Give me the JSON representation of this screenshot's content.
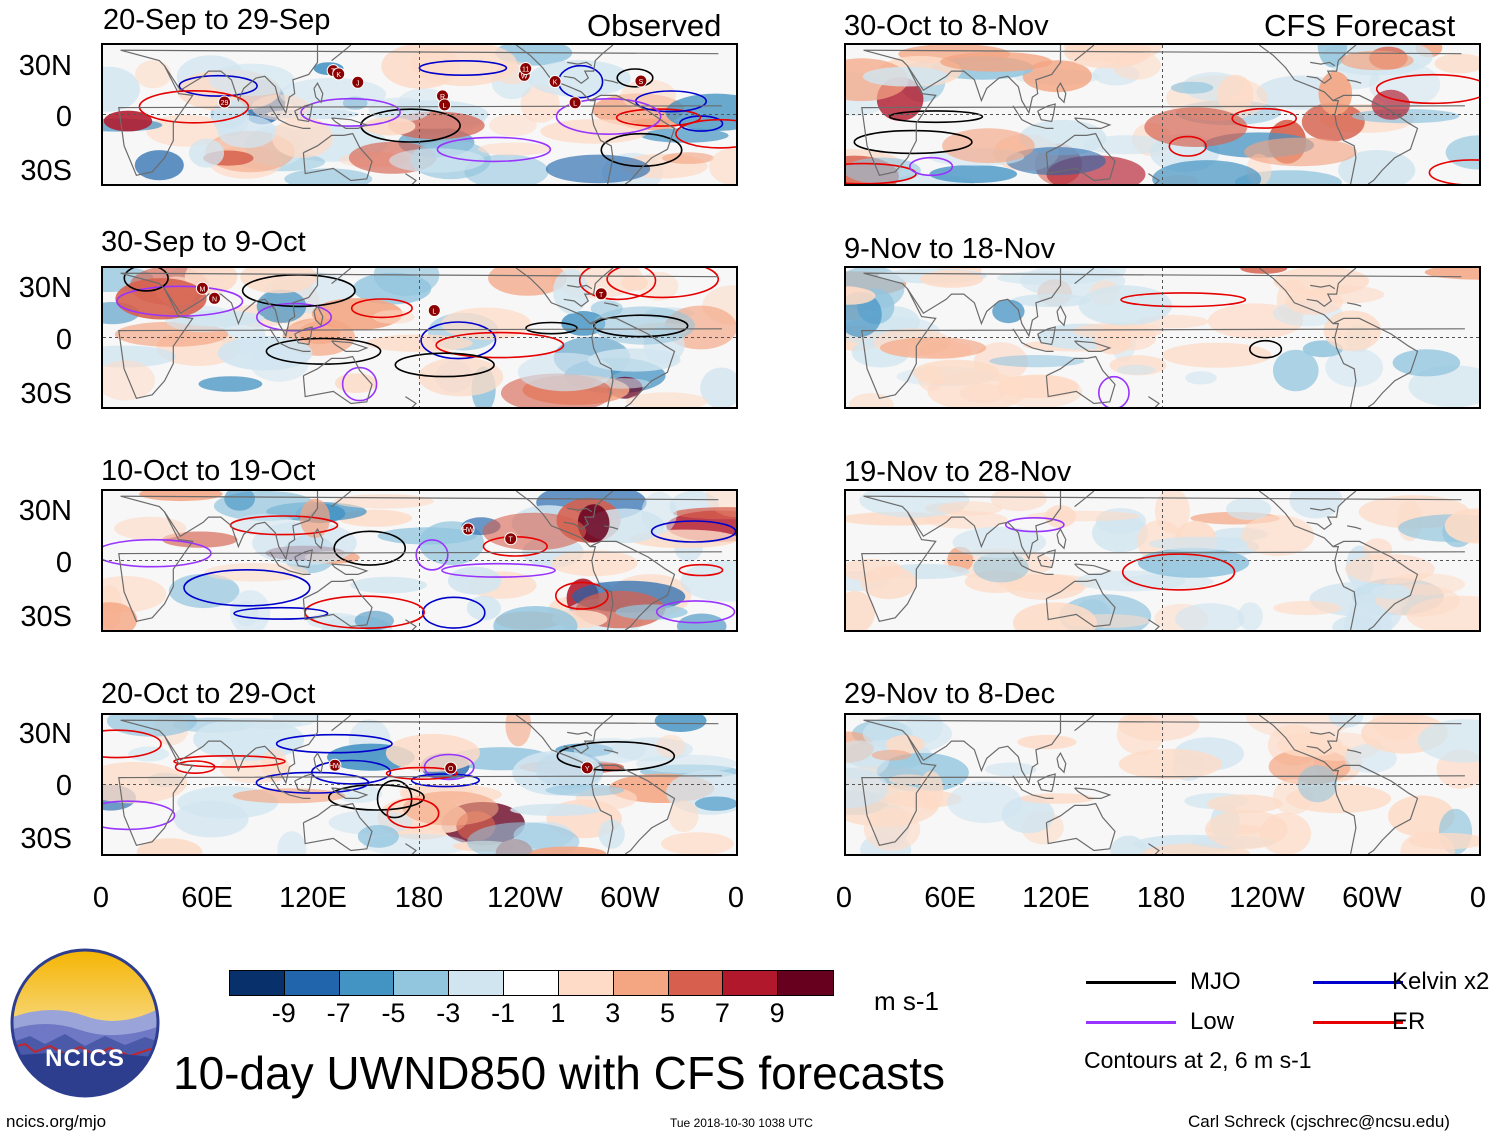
{
  "headers": {
    "observed": "Observed",
    "forecast": "CFS Forecast"
  },
  "panels_left": [
    {
      "title": "20-Sep to 29-Sep"
    },
    {
      "title": "30-Sep to 9-Oct"
    },
    {
      "title": "10-Oct to 19-Oct"
    },
    {
      "title": "20-Oct to 29-Oct"
    }
  ],
  "panels_right": [
    {
      "title": "30-Oct to 8-Nov"
    },
    {
      "title": "9-Nov to 18-Nov"
    },
    {
      "title": "19-Nov to 28-Nov"
    },
    {
      "title": "29-Nov to 8-Dec"
    }
  ],
  "lat_labels": [
    "30N",
    "0",
    "30S"
  ],
  "lon_labels": [
    "0",
    "60E",
    "120E",
    "180",
    "120W",
    "60W",
    "0"
  ],
  "colorbar": {
    "colors": [
      "#08306b",
      "#2166ac",
      "#4393c3",
      "#92c5de",
      "#d1e5f0",
      "#ffffff",
      "#fddbc7",
      "#f4a582",
      "#d6604d",
      "#b2182b",
      "#67001f"
    ],
    "ticks": [
      "-9",
      "-7",
      "-5",
      "-3",
      "-1",
      "1",
      "3",
      "5",
      "7",
      "9"
    ],
    "units": "m s-1"
  },
  "legend": {
    "items": [
      {
        "label": "MJO",
        "color": "#000000"
      },
      {
        "label": "Kelvin x2",
        "color": "#0000cc"
      },
      {
        "label": "Low",
        "color": "#9933ff"
      },
      {
        "label": "ER",
        "color": "#e60000"
      }
    ],
    "note": "Contours at 2, 6 m s-1"
  },
  "logo": {
    "text": "NCICS"
  },
  "main_title": "10-day UWND850 with CFS forecasts",
  "footer": {
    "url": "ncics.org/mjo",
    "timestamp": "Tue 2018-10-30 1038 UTC",
    "credit": "Carl Schreck (cjschrec@ncsu.edu)"
  },
  "storm_markers": [
    [
      "J",
      "29",
      "T",
      "K",
      "W",
      "R",
      "S",
      "L",
      "11",
      "K",
      "L"
    ],
    [
      "L",
      "T",
      "M",
      "N"
    ],
    [
      "T",
      "HW"
    ],
    [
      "Y",
      "HW",
      "O"
    ]
  ]
}
